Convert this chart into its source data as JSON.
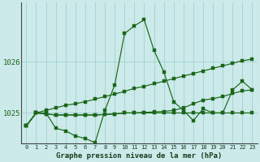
{
  "title": "Graphe pression niveau de la mer (hPa)",
  "x_labels": [
    "0",
    "1",
    "2",
    "3",
    "4",
    "5",
    "6",
    "7",
    "8",
    "9",
    "10",
    "11",
    "12",
    "13",
    "14",
    "15",
    "16",
    "17",
    "18",
    "19",
    "20",
    "21",
    "22",
    "23"
  ],
  "ylim": [
    1024.4,
    1027.15
  ],
  "yticks": [
    1025,
    1026
  ],
  "bg_color": "#cceaea",
  "grid_color": "#99cccc",
  "line_color": "#1a6619",
  "lineA": [
    1024.75,
    1025.0,
    1025.0,
    1024.7,
    1024.65,
    1024.55,
    1024.5,
    1024.42,
    1025.05,
    1025.55,
    1026.55,
    1026.7,
    1026.82,
    1026.22,
    1025.8,
    1025.22,
    1025.05,
    1024.85,
    1025.08,
    1025.0,
    1025.0,
    1025.45,
    1025.62,
    1025.45
  ],
  "lineB": [
    1024.75,
    1025.0,
    1025.05,
    1025.1,
    1025.15,
    1025.18,
    1025.22,
    1025.27,
    1025.32,
    1025.37,
    1025.42,
    1025.48,
    1025.52,
    1025.57,
    1025.62,
    1025.67,
    1025.72,
    1025.77,
    1025.82,
    1025.87,
    1025.92,
    1025.97,
    1026.02,
    1026.05
  ],
  "lineC": [
    1024.75,
    1025.0,
    1024.98,
    1024.96,
    1024.96,
    1024.96,
    1024.96,
    1024.96,
    1024.97,
    1024.98,
    1025.0,
    1025.0,
    1025.01,
    1025.02,
    1025.03,
    1025.05,
    1025.1,
    1025.18,
    1025.25,
    1025.28,
    1025.32,
    1025.38,
    1025.43,
    1025.45
  ],
  "lineD": [
    1024.75,
    1025.0,
    1024.98,
    1024.96,
    1024.96,
    1024.96,
    1024.96,
    1024.96,
    1024.97,
    1024.98,
    1025.0,
    1025.0,
    1025.0,
    1025.0,
    1025.0,
    1025.0,
    1025.0,
    1025.0,
    1025.0,
    1025.0,
    1025.0,
    1025.0,
    1025.0,
    1025.0
  ]
}
